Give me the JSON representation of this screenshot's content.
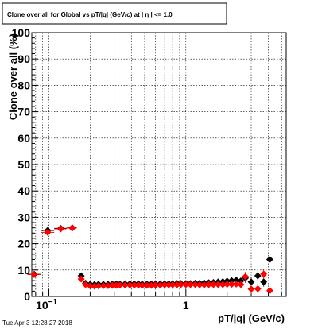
{
  "chart_data": {
    "type": "scatter",
    "title": "Clone  over all for Global vs pT/|q| (GeV/c) at |  η | <= 1.0",
    "xlabel": "pT/|q| (GeV/c)",
    "ylabel": "Clone  over all (%)",
    "footer": "Tue Apr  3 12:28:27 2018",
    "x_scale": "log",
    "xlim": [
      0.075,
      5.4
    ],
    "ylim": [
      0,
      100
    ],
    "y_ticks": [
      "0",
      "10",
      "20",
      "30",
      "40",
      "50",
      "60",
      "70",
      "80",
      "90",
      "100"
    ],
    "x_tick_labels": [
      {
        "x": 0.1,
        "label": "10",
        "exp": "−1"
      },
      {
        "x": 1,
        "label": "1"
      }
    ],
    "grid": true,
    "series": [
      {
        "color": "#000000",
        "points": [
          [
            0.078,
            8.4
          ],
          [
            0.098,
            25.0
          ],
          [
            0.122,
            25.8
          ],
          [
            0.148,
            26.0
          ],
          [
            0.172,
            7.8
          ],
          [
            0.185,
            5.0
          ],
          [
            0.2,
            4.6
          ],
          [
            0.215,
            4.5
          ],
          [
            0.23,
            4.6
          ],
          [
            0.25,
            4.6
          ],
          [
            0.27,
            4.6
          ],
          [
            0.29,
            4.7
          ],
          [
            0.31,
            4.7
          ],
          [
            0.33,
            4.7
          ],
          [
            0.36,
            4.8
          ],
          [
            0.39,
            4.8
          ],
          [
            0.42,
            4.8
          ],
          [
            0.45,
            4.8
          ],
          [
            0.48,
            4.7
          ],
          [
            0.52,
            4.7
          ],
          [
            0.56,
            4.7
          ],
          [
            0.6,
            4.7
          ],
          [
            0.65,
            4.8
          ],
          [
            0.7,
            4.8
          ],
          [
            0.75,
            4.8
          ],
          [
            0.8,
            4.8
          ],
          [
            0.86,
            4.9
          ],
          [
            0.92,
            4.9
          ],
          [
            1.0,
            4.9
          ],
          [
            1.08,
            4.9
          ],
          [
            1.17,
            5.0
          ],
          [
            1.26,
            5.0
          ],
          [
            1.36,
            5.1
          ],
          [
            1.47,
            5.2
          ],
          [
            1.59,
            5.3
          ],
          [
            1.72,
            5.5
          ],
          [
            1.86,
            5.6
          ],
          [
            2.0,
            5.8
          ],
          [
            2.16,
            6.0
          ],
          [
            2.33,
            6.2
          ],
          [
            2.52,
            5.9
          ],
          [
            2.72,
            7.0
          ],
          [
            3.0,
            5.5
          ],
          [
            3.35,
            7.8
          ],
          [
            3.7,
            5.5
          ],
          [
            4.1,
            14.0
          ]
        ]
      },
      {
        "color": "#ff0000",
        "points": [
          [
            0.078,
            8.3
          ],
          [
            0.098,
            24.3
          ],
          [
            0.122,
            25.6
          ],
          [
            0.148,
            25.9
          ],
          [
            0.172,
            6.6
          ],
          [
            0.185,
            4.5
          ],
          [
            0.2,
            4.0
          ],
          [
            0.215,
            3.9
          ],
          [
            0.23,
            4.0
          ],
          [
            0.25,
            4.1
          ],
          [
            0.27,
            4.1
          ],
          [
            0.29,
            4.2
          ],
          [
            0.31,
            4.2
          ],
          [
            0.33,
            4.3
          ],
          [
            0.36,
            4.3
          ],
          [
            0.39,
            4.3
          ],
          [
            0.42,
            4.3
          ],
          [
            0.45,
            4.3
          ],
          [
            0.48,
            4.2
          ],
          [
            0.52,
            4.2
          ],
          [
            0.56,
            4.2
          ],
          [
            0.6,
            4.3
          ],
          [
            0.65,
            4.3
          ],
          [
            0.7,
            4.4
          ],
          [
            0.75,
            4.4
          ],
          [
            0.8,
            4.4
          ],
          [
            0.86,
            4.4
          ],
          [
            0.92,
            4.5
          ],
          [
            1.0,
            4.5
          ],
          [
            1.08,
            4.5
          ],
          [
            1.17,
            4.5
          ],
          [
            1.26,
            4.4
          ],
          [
            1.36,
            4.4
          ],
          [
            1.47,
            4.5
          ],
          [
            1.59,
            4.5
          ],
          [
            1.72,
            4.5
          ],
          [
            1.86,
            4.5
          ],
          [
            2.0,
            4.6
          ],
          [
            2.16,
            4.6
          ],
          [
            2.33,
            4.7
          ],
          [
            2.52,
            4.5
          ],
          [
            2.72,
            7.5
          ],
          [
            3.0,
            2.8
          ],
          [
            3.35,
            2.9
          ],
          [
            3.7,
            8.5
          ],
          [
            4.1,
            2.2
          ]
        ]
      }
    ]
  }
}
